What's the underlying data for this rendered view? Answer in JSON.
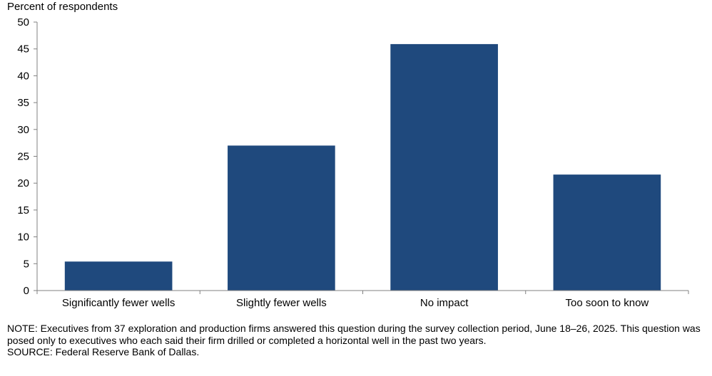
{
  "chart_data": {
    "type": "bar",
    "ylabel": "Percent of respondents",
    "categories": [
      "Significantly fewer wells",
      "Slightly fewer wells",
      "No impact",
      "Too soon to know"
    ],
    "values": [
      5.4,
      27.0,
      45.9,
      21.6
    ],
    "ylim": [
      0,
      50
    ],
    "yticks": [
      0,
      5,
      10,
      15,
      20,
      25,
      30,
      35,
      40,
      45,
      50
    ],
    "bar_color": "#1f497d",
    "grid": false,
    "legend": "none"
  },
  "notes": {
    "note": "NOTE: Executives from 37 exploration and production firms answered this question during the survey collection period, June 18–26, 2025. This question was posed only to executives who each said their firm drilled or completed a horizontal well in the past two years.",
    "source": "SOURCE: Federal Reserve Bank of Dallas."
  }
}
